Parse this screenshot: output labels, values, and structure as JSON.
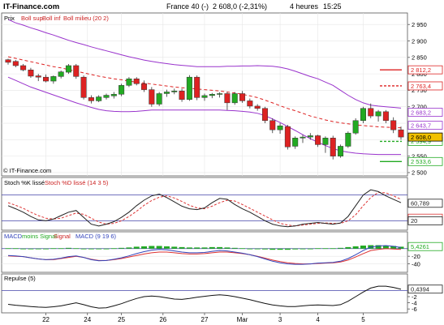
{
  "header": {
    "site": "IT-Finance.com",
    "instrument": "France 40 (-)",
    "last": "2 608,0 (-2,31%)",
    "timeframe": "4 heures",
    "time": "15:25"
  },
  "colors": {
    "bull": "#22aa22",
    "bear": "#dd2222",
    "band": "#9933cc",
    "ma": "#dd2222",
    "stoch_k": "#222222",
    "stoch_d": "#dd3333",
    "macd_line": "#3344bb",
    "macd_signal": "#dd3333",
    "hist": "#22aa22",
    "ref_line": "#4444aa",
    "pivot_top": "#dd2222",
    "pivot_bottom": "#22aa22"
  },
  "chart_data": [
    {
      "type": "candlestick",
      "panel": "price",
      "legend": [
        "Prix",
        "Boll sup",
        "Boll inf",
        "Boll milieu (20 2)"
      ],
      "copyright": "© IT-Finance.com",
      "ylim": [
        2490,
        2985
      ],
      "y_ticks": [
        2500,
        2550,
        2600,
        2650,
        2700,
        2750,
        2800,
        2850,
        2900,
        2950
      ],
      "y_tick_labels": [
        "2 500",
        "2 550",
        "2 600",
        "2 650",
        "2 700",
        "2 750",
        "2 800",
        "2 850",
        "2 900",
        "2 950"
      ],
      "x_labels": [
        "22",
        "24",
        "25",
        "26",
        "27",
        "Mar",
        "3",
        "4",
        "5"
      ],
      "x_label_index": [
        5,
        10.5,
        15,
        20.5,
        26,
        31,
        36,
        41,
        47
      ],
      "candles": [
        [
          2843,
          2846,
          2828,
          2835
        ],
        [
          2838,
          2842,
          2820,
          2825
        ],
        [
          2825,
          2830,
          2808,
          2812
        ],
        [
          2812,
          2818,
          2788,
          2793
        ],
        [
          2794,
          2800,
          2778,
          2790
        ],
        [
          2790,
          2798,
          2774,
          2778
        ],
        [
          2778,
          2795,
          2770,
          2792
        ],
        [
          2792,
          2810,
          2786,
          2806
        ],
        [
          2805,
          2830,
          2800,
          2825
        ],
        [
          2825,
          2830,
          2785,
          2792
        ],
        [
          2790,
          2795,
          2722,
          2728
        ],
        [
          2728,
          2735,
          2710,
          2718
        ],
        [
          2718,
          2735,
          2714,
          2730
        ],
        [
          2728,
          2740,
          2722,
          2735
        ],
        [
          2733,
          2745,
          2725,
          2738
        ],
        [
          2738,
          2770,
          2732,
          2765
        ],
        [
          2765,
          2790,
          2760,
          2785
        ],
        [
          2785,
          2790,
          2765,
          2770
        ],
        [
          2770,
          2780,
          2745,
          2752
        ],
        [
          2752,
          2760,
          2700,
          2708
        ],
        [
          2708,
          2745,
          2702,
          2740
        ],
        [
          2740,
          2752,
          2730,
          2745
        ],
        [
          2745,
          2755,
          2738,
          2748
        ],
        [
          2748,
          2755,
          2715,
          2722
        ],
        [
          2722,
          2796,
          2718,
          2790
        ],
        [
          2790,
          2795,
          2720,
          2728
        ],
        [
          2728,
          2740,
          2718,
          2734
        ],
        [
          2734,
          2742,
          2726,
          2738
        ],
        [
          2738,
          2744,
          2728,
          2740
        ],
        [
          2740,
          2745,
          2690,
          2712
        ],
        [
          2712,
          2745,
          2706,
          2740
        ],
        [
          2740,
          2748,
          2712,
          2718
        ],
        [
          2718,
          2725,
          2695,
          2702
        ],
        [
          2702,
          2708,
          2688,
          2695
        ],
        [
          2695,
          2700,
          2650,
          2658
        ],
        [
          2658,
          2665,
          2620,
          2630
        ],
        [
          2630,
          2650,
          2618,
          2642
        ],
        [
          2640,
          2645,
          2570,
          2578
        ],
        [
          2580,
          2610,
          2572,
          2605
        ],
        [
          2605,
          2615,
          2590,
          2608
        ],
        [
          2608,
          2620,
          2600,
          2612
        ],
        [
          2612,
          2615,
          2578,
          2585
        ],
        [
          2585,
          2610,
          2560,
          2605
        ],
        [
          2605,
          2612,
          2540,
          2550
        ],
        [
          2550,
          2585,
          2545,
          2580
        ],
        [
          2580,
          2625,
          2575,
          2620
        ],
        [
          2620,
          2665,
          2615,
          2658
        ],
        [
          2658,
          2700,
          2650,
          2695
        ],
        [
          2695,
          2710,
          2665,
          2672
        ],
        [
          2672,
          2690,
          2655,
          2685
        ],
        [
          2685,
          2690,
          2650,
          2658
        ],
        [
          2658,
          2668,
          2620,
          2630
        ],
        [
          2630,
          2640,
          2600,
          2608
        ]
      ],
      "bollinger_upper": [
        2965,
        2955,
        2948,
        2940,
        2933,
        2925,
        2918,
        2910,
        2902,
        2895,
        2889,
        2882,
        2876,
        2870,
        2864,
        2858,
        2852,
        2847,
        2842,
        2838,
        2834,
        2831,
        2828,
        2826,
        2824,
        2822,
        2822,
        2822,
        2822,
        2823,
        2823,
        2824,
        2824,
        2825,
        2824,
        2823,
        2820,
        2815,
        2808,
        2800,
        2792,
        2785,
        2775,
        2765,
        2750,
        2735,
        2722,
        2712,
        2705,
        2702,
        2700,
        2698,
        2696
      ],
      "bollinger_lower": [
        2790,
        2780,
        2770,
        2760,
        2752,
        2744,
        2736,
        2728,
        2720,
        2712,
        2705,
        2698,
        2692,
        2688,
        2686,
        2685,
        2685,
        2686,
        2688,
        2690,
        2690,
        2690,
        2690,
        2690,
        2690,
        2690,
        2690,
        2690,
        2690,
        2689,
        2688,
        2686,
        2684,
        2680,
        2673,
        2663,
        2652,
        2640,
        2628,
        2615,
        2603,
        2592,
        2582,
        2573,
        2566,
        2562,
        2559,
        2557,
        2556,
        2555,
        2555,
        2555,
        2555
      ],
      "bollinger_mid": [
        2852,
        2847,
        2842,
        2837,
        2832,
        2827,
        2822,
        2818,
        2813,
        2808,
        2803,
        2798,
        2793,
        2789,
        2785,
        2782,
        2778,
        2775,
        2772,
        2769,
        2766,
        2763,
        2760,
        2758,
        2756,
        2754,
        2752,
        2750,
        2748,
        2745,
        2742,
        2738,
        2733,
        2728,
        2720,
        2712,
        2703,
        2695,
        2688,
        2680,
        2672,
        2666,
        2660,
        2655,
        2651,
        2648,
        2645,
        2643,
        2641,
        2639,
        2638,
        2637,
        2636
      ],
      "pivot_lines": [
        {
          "value": 2812.2,
          "label": "2 812,2",
          "color": "#dd2222",
          "style": "solid"
        },
        {
          "value": 2763.4,
          "label": "2 763,4",
          "color": "#dd2222",
          "style": "dashed"
        },
        {
          "value": 2594.9,
          "label": "2 594,9",
          "color": "#22aa22",
          "style": "dashed"
        },
        {
          "value": 2533.6,
          "label": "2 533,6",
          "color": "#22aa22",
          "style": "solid"
        }
      ],
      "value_labels": [
        {
          "value": 2683.2,
          "label": "2 683,2"
        },
        {
          "value": 2643.7,
          "label": "2 643,7"
        },
        {
          "value": 2608.0,
          "label": "2 608,0",
          "highlight": true
        }
      ]
    },
    {
      "type": "line",
      "panel": "stochastic",
      "legend": [
        "Stoch %K lissé",
        "Stoch %D lissé (14 3 5)"
      ],
      "ylim": [
        0,
        100
      ],
      "reference_lines": [
        80,
        20
      ],
      "axis_labels": [
        {
          "value": 26.018,
          "label": "26,018"
        },
        {
          "value": 60.789,
          "label": "60,789"
        },
        {
          "value": 20,
          "label": "20"
        }
      ],
      "series": [
        {
          "name": "Stoch %K lissé",
          "values": [
            55,
            48,
            40,
            30,
            22,
            20,
            24,
            32,
            40,
            44,
            28,
            12,
            8,
            12,
            18,
            28,
            40,
            55,
            68,
            78,
            82,
            74,
            64,
            54,
            48,
            46,
            50,
            62,
            72,
            70,
            58,
            48,
            40,
            30,
            20,
            12,
            8,
            6,
            8,
            12,
            14,
            16,
            14,
            12,
            15,
            30,
            55,
            80,
            92,
            88,
            78,
            70,
            62
          ]
        },
        {
          "name": "Stoch %D lissé",
          "values": [
            62,
            56,
            49,
            40,
            32,
            26,
            24,
            26,
            32,
            38,
            35,
            26,
            17,
            12,
            14,
            20,
            30,
            42,
            56,
            67,
            75,
            78,
            73,
            65,
            56,
            50,
            48,
            54,
            62,
            68,
            66,
            58,
            49,
            40,
            31,
            22,
            14,
            10,
            8,
            10,
            12,
            14,
            15,
            14,
            14,
            20,
            34,
            55,
            74,
            86,
            85,
            78,
            70
          ]
        }
      ]
    },
    {
      "type": "bar",
      "panel": "macd",
      "legend": [
        "MACD",
        "moins Signal",
        "Signal",
        "MACD (9 19 6)"
      ],
      "ylim": [
        -60,
        25
      ],
      "y_ticks": [
        0,
        -20,
        -40
      ],
      "y_tick_labels": [
        "0",
        "-20",
        "-40"
      ],
      "axis_labels": [
        {
          "value": 5.4261,
          "label": "5,4261"
        }
      ],
      "histogram": [
        1,
        1,
        0,
        0,
        0,
        0,
        1,
        1,
        2,
        1,
        0,
        -1,
        -1,
        0,
        1,
        2,
        3,
        5,
        6,
        7,
        7,
        6,
        5,
        4,
        3,
        3,
        3,
        4,
        4,
        3,
        2,
        1,
        0,
        -1,
        -2,
        -3,
        -3,
        -3,
        -2,
        -1,
        0,
        1,
        1,
        1,
        2,
        4,
        6,
        8,
        9,
        9,
        8,
        7,
        5
      ],
      "series": [
        {
          "name": "MACD",
          "values": [
            -18,
            -19,
            -21,
            -24,
            -27,
            -29,
            -28,
            -25,
            -21,
            -19,
            -23,
            -29,
            -32,
            -31,
            -28,
            -24,
            -19,
            -13,
            -8,
            -4,
            -2,
            -3,
            -6,
            -9,
            -11,
            -11,
            -10,
            -7,
            -5,
            -6,
            -9,
            -12,
            -16,
            -21,
            -27,
            -33,
            -37,
            -40,
            -41,
            -41,
            -40,
            -38,
            -37,
            -36,
            -33,
            -26,
            -16,
            -5,
            4,
            7,
            8,
            6,
            3
          ]
        },
        {
          "name": "Signal",
          "values": [
            -19,
            -20,
            -21,
            -24,
            -27,
            -29,
            -29,
            -26,
            -23,
            -20,
            -23,
            -28,
            -31,
            -31,
            -29,
            -26,
            -22,
            -18,
            -14,
            -11,
            -9,
            -9,
            -11,
            -13,
            -14,
            -14,
            -13,
            -11,
            -9,
            -9,
            -11,
            -13,
            -16,
            -20,
            -25,
            -30,
            -34,
            -37,
            -39,
            -40,
            -40,
            -39,
            -38,
            -37,
            -35,
            -30,
            -22,
            -13,
            -5,
            -2,
            0,
            -1,
            -2
          ]
        }
      ]
    },
    {
      "type": "line",
      "panel": "momentum",
      "legend": [
        "Repulse (5)"
      ],
      "ylim": [
        -7,
        3
      ],
      "y_ticks": [
        -2,
        -4,
        -6
      ],
      "y_tick_labels": [
        "-2",
        "-4",
        "-6"
      ],
      "reference_lines": [
        0
      ],
      "axis_labels": [
        {
          "value": 0.4394,
          "label": "0,4394"
        }
      ],
      "series": [
        {
          "name": "Repulse",
          "values": [
            -4.5,
            -4.8,
            -5.0,
            -5.2,
            -5.4,
            -5.5,
            -5.3,
            -5.0,
            -4.5,
            -4.0,
            -4.6,
            -5.3,
            -5.7,
            -5.6,
            -5.0,
            -4.3,
            -3.4,
            -2.6,
            -2.0,
            -1.8,
            -2.0,
            -2.4,
            -2.8,
            -2.9,
            -2.6,
            -2.2,
            -1.9,
            -1.6,
            -1.4,
            -1.6,
            -2.0,
            -2.5,
            -3.0,
            -3.6,
            -4.2,
            -4.7,
            -5.0,
            -5.2,
            -5.2,
            -5.0,
            -4.8,
            -4.7,
            -4.8,
            -4.9,
            -4.6,
            -3.5,
            -2.0,
            -0.5,
            0.8,
            1.4,
            1.4,
            1.0,
            0.4
          ]
        }
      ]
    }
  ]
}
